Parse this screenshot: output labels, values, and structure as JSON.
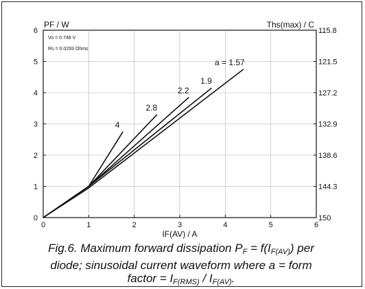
{
  "chart_data": {
    "type": "line",
    "ylabel_left": "PF / W",
    "ylabel_right": "Ths(max) / C",
    "xlabel": "IF(AV) / A",
    "xlim": [
      0,
      6
    ],
    "ylim": [
      0,
      6
    ],
    "x_ticks": [
      "0",
      "1",
      "2",
      "3",
      "4",
      "5",
      "6"
    ],
    "y_ticks_left": [
      "0",
      "1",
      "2",
      "3",
      "4",
      "5",
      "6"
    ],
    "y_ticks_right": [
      "150",
      "144.3",
      "138.6",
      "132.9",
      "127.2",
      "121.5",
      "115.8"
    ],
    "annotations": [
      "Vo = 0.748 V",
      "Rs = 0.0293 Ohms"
    ],
    "grid": true,
    "series": [
      {
        "name": "4",
        "x": [
          0,
          1,
          1.75
        ],
        "y": [
          0,
          1.0,
          2.75
        ]
      },
      {
        "name": "2.8",
        "x": [
          0,
          1,
          2.5
        ],
        "y": [
          0,
          1.0,
          3.3
        ]
      },
      {
        "name": "2.2",
        "x": [
          0,
          1,
          3.2
        ],
        "y": [
          0,
          1.0,
          3.85
        ]
      },
      {
        "name": "1.9",
        "x": [
          0,
          1,
          3.7
        ],
        "y": [
          0,
          1.0,
          4.15
        ]
      },
      {
        "name": "a = 1.57",
        "x": [
          0,
          1,
          4.4
        ],
        "y": [
          0,
          0.95,
          4.75
        ]
      }
    ]
  },
  "caption": {
    "line1_a": "Fig.6.  Maximum forward dissipation P",
    "line1_sub1": "F",
    "line1_b": " = f(I",
    "line1_sub2": "F(AV)",
    "line1_c": ") per",
    "line2": "diode; sinusoidal current waveform where a = form",
    "line3_a": "factor = I",
    "line3_sub1": "F(RMS)",
    "line3_b": " / I",
    "line3_sub2": "F(AV)",
    "line3_c": "."
  }
}
